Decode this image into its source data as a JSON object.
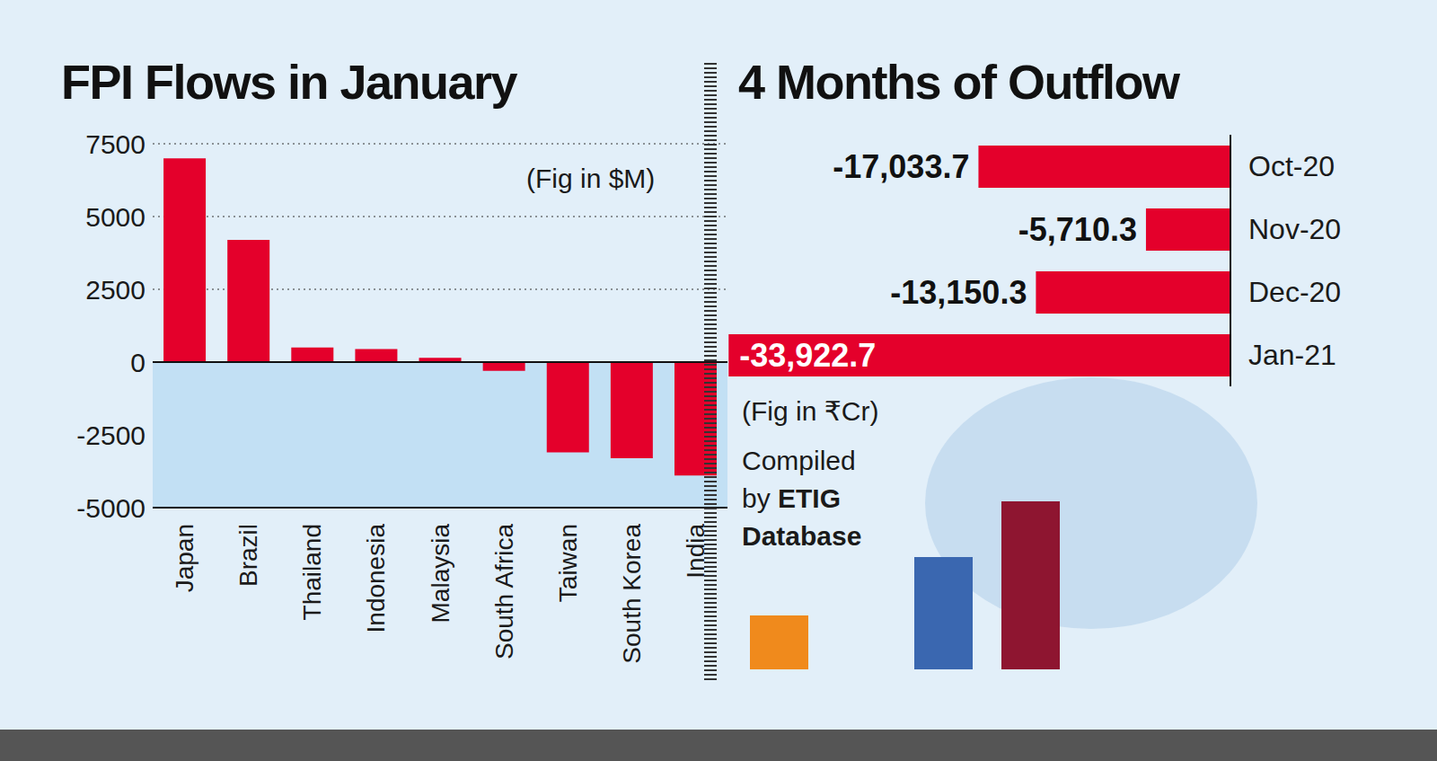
{
  "chart_data": [
    {
      "type": "bar",
      "title": "FPI Flows in January",
      "subtitle": "(Fig in $M)",
      "categories": [
        "Japan",
        "Brazil",
        "Thailand",
        "Indonesia",
        "Malaysia",
        "South Africa",
        "Taiwan",
        "South Korea",
        "India"
      ],
      "values": [
        7000,
        4200,
        500,
        450,
        150,
        -300,
        -3100,
        -3300,
        -3900
      ],
      "color": "#e4002b",
      "ylim": [
        -5000,
        7500
      ],
      "yticks": [
        -5000,
        -2500,
        0,
        2500,
        5000,
        7500
      ],
      "grid": true
    },
    {
      "type": "bar",
      "title": "4 Months of Outflow",
      "subtitle": "(Fig in ₹Cr)",
      "source": [
        "Compiled by",
        "ETIG Database"
      ],
      "categories": [
        "Oct-20",
        "Nov-20",
        "Dec-20",
        "Jan-21"
      ],
      "values": [
        -17033.7,
        -5710.3,
        -13150.3,
        -33922.7
      ],
      "value_labels": [
        "-17,033.7",
        "-5,710.3",
        "-13,150.3",
        "-33,922.7"
      ],
      "color": "#e4002b",
      "orientation": "horizontal",
      "data_labels": true,
      "xlim": [
        -34000,
        0
      ],
      "tick_labels": "y"
    }
  ]
}
